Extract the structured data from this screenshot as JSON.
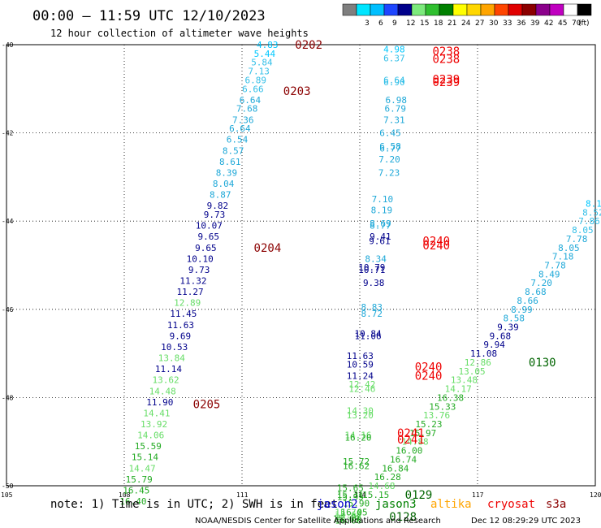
{
  "header": {
    "title": "00:00 – 11:59 UTC 12/10/2023",
    "subtitle": "12 hour collection of altimeter wave heights"
  },
  "colorbar": {
    "bins": [
      {
        "color": "#7f7f7f",
        "label": ""
      },
      {
        "color": "#00e5ff",
        "label": "3"
      },
      {
        "color": "#00bfff",
        "label": "6"
      },
      {
        "color": "#1e46ff",
        "label": "9"
      },
      {
        "color": "#00008b",
        "label": "12"
      },
      {
        "color": "#7cea7c",
        "label": "15"
      },
      {
        "color": "#2fbf2f",
        "label": "18"
      },
      {
        "color": "#008000",
        "label": "21"
      },
      {
        "color": "#ffff00",
        "label": "24"
      },
      {
        "color": "#ffd700",
        "label": "27"
      },
      {
        "color": "#ffa500",
        "label": "30"
      },
      {
        "color": "#ff4500",
        "label": "33"
      },
      {
        "color": "#e00000",
        "label": "36"
      },
      {
        "color": "#8b0000",
        "label": "39"
      },
      {
        "color": "#8b008b",
        "label": "42"
      },
      {
        "color": "#c000c0",
        "label": "45"
      },
      {
        "color": "#ffffff",
        "label": "70"
      },
      {
        "color": "#000000",
        "label": ""
      }
    ],
    "unit": "(ft)"
  },
  "axes": {
    "x_ticks": [
      "105",
      "108",
      "111",
      "114",
      "117",
      "120"
    ],
    "y_ticks": [
      "-40",
      "-42",
      "-44",
      "-46",
      "-48",
      "-50"
    ]
  },
  "palette": {
    "c1": "#00c8ff",
    "c2": "#35c0e8",
    "c3": "#1ea8d8",
    "c4": "#1e46ff",
    "c5": "#00008b",
    "g1": "#66dd66",
    "g2": "#22aa22",
    "g3": "#006400",
    "r1": "#ee0000",
    "r2": "#8b0000"
  },
  "tracks": [
    {
      "name": "track-west",
      "obs": [
        {
          "lon": 111.92,
          "lat": -40.0,
          "v": "4.83",
          "c": "c1"
        },
        {
          "lon": 111.85,
          "lat": -40.2,
          "v": "5.44",
          "c": "c1"
        },
        {
          "lon": 111.78,
          "lat": -40.4,
          "v": "5.84",
          "c": "c2"
        },
        {
          "lon": 111.7,
          "lat": -40.6,
          "v": "7.13",
          "c": "c2"
        },
        {
          "lon": 111.62,
          "lat": -40.8,
          "v": "6.89",
          "c": "c2"
        },
        {
          "lon": 111.55,
          "lat": -41.0,
          "v": "6.66",
          "c": "c2"
        },
        {
          "lon": 111.48,
          "lat": -41.25,
          "v": "6.64",
          "c": "c3"
        },
        {
          "lon": 111.4,
          "lat": -41.45,
          "v": "7.68",
          "c": "c3"
        },
        {
          "lon": 111.3,
          "lat": -41.7,
          "v": "7.36",
          "c": "c3"
        },
        {
          "lon": 111.22,
          "lat": -41.9,
          "v": "6.64",
          "c": "c3"
        },
        {
          "lon": 111.15,
          "lat": -42.15,
          "v": "6.54",
          "c": "c3"
        },
        {
          "lon": 111.05,
          "lat": -42.4,
          "v": "8.57",
          "c": "c3"
        },
        {
          "lon": 110.97,
          "lat": -42.65,
          "v": "8.61",
          "c": "c3"
        },
        {
          "lon": 110.88,
          "lat": -42.9,
          "v": "8.39",
          "c": "c3"
        },
        {
          "lon": 110.8,
          "lat": -43.15,
          "v": "8.04",
          "c": "c3"
        },
        {
          "lon": 110.72,
          "lat": -43.4,
          "v": "8.87",
          "c": "c3"
        },
        {
          "lon": 110.65,
          "lat": -43.65,
          "v": "9.82",
          "c": "c5"
        },
        {
          "lon": 110.57,
          "lat": -43.85,
          "v": "9.73",
          "c": "c5"
        },
        {
          "lon": 110.5,
          "lat": -44.1,
          "v": "10.07",
          "c": "c5"
        },
        {
          "lon": 110.42,
          "lat": -44.35,
          "v": "9.65",
          "c": "c5"
        },
        {
          "lon": 110.35,
          "lat": -44.6,
          "v": "9.65",
          "c": "c5"
        },
        {
          "lon": 110.27,
          "lat": -44.85,
          "v": "10.10",
          "c": "c5"
        },
        {
          "lon": 110.18,
          "lat": -45.1,
          "v": "9.73",
          "c": "c5"
        },
        {
          "lon": 110.1,
          "lat": -45.35,
          "v": "11.32",
          "c": "c5"
        },
        {
          "lon": 110.02,
          "lat": -45.6,
          "v": "11.27",
          "c": "c5"
        },
        {
          "lon": 109.95,
          "lat": -45.85,
          "v": "12.89",
          "c": "g1"
        },
        {
          "lon": 109.85,
          "lat": -46.1,
          "v": "11.45",
          "c": "c5"
        },
        {
          "lon": 109.78,
          "lat": -46.35,
          "v": "11.63",
          "c": "c5"
        },
        {
          "lon": 109.7,
          "lat": -46.6,
          "v": "9.69",
          "c": "c5"
        },
        {
          "lon": 109.62,
          "lat": -46.85,
          "v": "10.53",
          "c": "c5"
        },
        {
          "lon": 109.55,
          "lat": -47.1,
          "v": "13.84",
          "c": "g1"
        },
        {
          "lon": 109.47,
          "lat": -47.35,
          "v": "11.14",
          "c": "c5"
        },
        {
          "lon": 109.4,
          "lat": -47.6,
          "v": "13.62",
          "c": "g1"
        },
        {
          "lon": 109.32,
          "lat": -47.85,
          "v": "14.48",
          "c": "g1"
        },
        {
          "lon": 109.25,
          "lat": -48.1,
          "v": "11.90",
          "c": "c5"
        },
        {
          "lon": 109.17,
          "lat": -48.35,
          "v": "14.41",
          "c": "g1"
        },
        {
          "lon": 109.1,
          "lat": -48.6,
          "v": "13.92",
          "c": "g1"
        },
        {
          "lon": 109.02,
          "lat": -48.85,
          "v": "14.06",
          "c": "g1"
        },
        {
          "lon": 108.95,
          "lat": -49.1,
          "v": "15.59",
          "c": "g2"
        },
        {
          "lon": 108.87,
          "lat": -49.35,
          "v": "15.14",
          "c": "g2"
        },
        {
          "lon": 108.8,
          "lat": -49.6,
          "v": "14.47",
          "c": "g1"
        },
        {
          "lon": 108.72,
          "lat": -49.85,
          "v": "15.79",
          "c": "g2"
        },
        {
          "lon": 108.65,
          "lat": -50.1,
          "v": "16.45",
          "c": "g2"
        },
        {
          "lon": 108.57,
          "lat": -50.35,
          "v": "16.40",
          "c": "g2"
        }
      ]
    },
    {
      "name": "track-east",
      "obs": [
        {
          "lon": 120.3,
          "lat": -43.6,
          "v": "8.10",
          "c": "c1"
        },
        {
          "lon": 120.22,
          "lat": -43.8,
          "v": "8.52",
          "c": "c2"
        },
        {
          "lon": 120.12,
          "lat": -44.0,
          "v": "7.86",
          "c": "c2"
        },
        {
          "lon": 119.95,
          "lat": -44.2,
          "v": "8.05",
          "c": "c2"
        },
        {
          "lon": 119.8,
          "lat": -44.4,
          "v": "7.78",
          "c": "c3"
        },
        {
          "lon": 119.6,
          "lat": -44.6,
          "v": "8.05",
          "c": "c3"
        },
        {
          "lon": 119.45,
          "lat": -44.8,
          "v": "7.18",
          "c": "c3"
        },
        {
          "lon": 119.25,
          "lat": -45.0,
          "v": "7.78",
          "c": "c3"
        },
        {
          "lon": 119.1,
          "lat": -45.2,
          "v": "8.49",
          "c": "c3"
        },
        {
          "lon": 118.9,
          "lat": -45.4,
          "v": "7.20",
          "c": "c3"
        },
        {
          "lon": 118.75,
          "lat": -45.6,
          "v": "8.68",
          "c": "c3"
        },
        {
          "lon": 118.55,
          "lat": -45.8,
          "v": "8.66",
          "c": "c3"
        },
        {
          "lon": 118.4,
          "lat": -46.0,
          "v": "8.99",
          "c": "c3"
        },
        {
          "lon": 118.2,
          "lat": -46.2,
          "v": "8.58",
          "c": "c3"
        },
        {
          "lon": 118.05,
          "lat": -46.4,
          "v": "9.39",
          "c": "c5"
        },
        {
          "lon": 117.85,
          "lat": -46.6,
          "v": "9.68",
          "c": "c5"
        },
        {
          "lon": 117.7,
          "lat": -46.8,
          "v": "9.94",
          "c": "c5"
        },
        {
          "lon": 117.5,
          "lat": -47.0,
          "v": "11.08",
          "c": "c5"
        },
        {
          "lon": 117.35,
          "lat": -47.2,
          "v": "12.86",
          "c": "g1"
        },
        {
          "lon": 117.2,
          "lat": -47.4,
          "v": "13.05",
          "c": "g1"
        },
        {
          "lon": 117.0,
          "lat": -47.6,
          "v": "13.48",
          "c": "g1"
        },
        {
          "lon": 116.85,
          "lat": -47.8,
          "v": "14.17",
          "c": "g1"
        },
        {
          "lon": 116.65,
          "lat": -48.0,
          "v": "16.38",
          "c": "g2"
        },
        {
          "lon": 116.45,
          "lat": -48.2,
          "v": "15.33",
          "c": "g2"
        },
        {
          "lon": 116.3,
          "lat": -48.4,
          "v": "13.76",
          "c": "g1"
        },
        {
          "lon": 116.1,
          "lat": -48.6,
          "v": "15.23",
          "c": "g2"
        },
        {
          "lon": 115.95,
          "lat": -48.8,
          "v": "15.97",
          "c": "g2"
        },
        {
          "lon": 115.75,
          "lat": -49.0,
          "v": "14.88",
          "c": "g1"
        },
        {
          "lon": 115.6,
          "lat": -49.2,
          "v": "16.00",
          "c": "g2"
        },
        {
          "lon": 115.45,
          "lat": -49.4,
          "v": "16.74",
          "c": "g2"
        },
        {
          "lon": 115.25,
          "lat": -49.6,
          "v": "16.84",
          "c": "g2"
        },
        {
          "lon": 115.05,
          "lat": -49.8,
          "v": "16.28",
          "c": "g2"
        },
        {
          "lon": 114.9,
          "lat": -50.0,
          "v": "14.68",
          "c": "g1"
        },
        {
          "lon": 114.75,
          "lat": -50.2,
          "v": "15.15",
          "c": "g2"
        }
      ]
    },
    {
      "name": "track-middle-upper",
      "obs": [
        {
          "lon": 115.15,
          "lat": -40.1,
          "v": "4.98",
          "c": "c1"
        },
        {
          "lon": 115.15,
          "lat": -40.3,
          "v": "6.37",
          "c": "c2"
        },
        {
          "lon": 115.15,
          "lat": -40.8,
          "v": "6.64",
          "c": "c2"
        },
        {
          "lon": 115.15,
          "lat": -40.85,
          "v": "6.90",
          "c": "c2"
        },
        {
          "lon": 115.2,
          "lat": -41.25,
          "v": "6.98",
          "c": "c3"
        },
        {
          "lon": 115.18,
          "lat": -41.45,
          "v": "6.79",
          "c": "c3"
        },
        {
          "lon": 115.15,
          "lat": -41.7,
          "v": "7.31",
          "c": "c3"
        },
        {
          "lon": 115.05,
          "lat": -42.0,
          "v": "6.45",
          "c": "c3"
        },
        {
          "lon": 115.05,
          "lat": -42.3,
          "v": "6.58",
          "c": "c3"
        },
        {
          "lon": 115.05,
          "lat": -42.35,
          "v": "6.77",
          "c": "c3"
        },
        {
          "lon": 115.03,
          "lat": -42.6,
          "v": "7.20",
          "c": "c3"
        },
        {
          "lon": 115.02,
          "lat": -42.9,
          "v": "7.23",
          "c": "c3"
        },
        {
          "lon": 114.85,
          "lat": -43.5,
          "v": "7.10",
          "c": "c3"
        },
        {
          "lon": 114.83,
          "lat": -43.75,
          "v": "8.19",
          "c": "c3"
        },
        {
          "lon": 114.8,
          "lat": -44.05,
          "v": "8.69",
          "c": "c3"
        },
        {
          "lon": 114.8,
          "lat": -44.1,
          "v": "8.77",
          "c": "c3"
        },
        {
          "lon": 114.8,
          "lat": -44.35,
          "v": "9.41",
          "c": "c5"
        },
        {
          "lon": 114.78,
          "lat": -44.45,
          "v": "9.61",
          "c": "c5"
        }
      ]
    },
    {
      "name": "track-middle-lower",
      "obs": [
        {
          "lon": 114.68,
          "lat": -44.85,
          "v": "8.34",
          "c": "c3"
        },
        {
          "lon": 114.65,
          "lat": -45.05,
          "v": "10.79",
          "c": "c5"
        },
        {
          "lon": 114.65,
          "lat": -45.1,
          "v": "10.71",
          "c": "c5"
        },
        {
          "lon": 114.63,
          "lat": -45.4,
          "v": "9.38",
          "c": "c5"
        },
        {
          "lon": 114.58,
          "lat": -45.95,
          "v": "8.83",
          "c": "c3"
        },
        {
          "lon": 114.58,
          "lat": -46.1,
          "v": "8.72",
          "c": "c3"
        },
        {
          "lon": 114.55,
          "lat": -46.55,
          "v": "10.84",
          "c": "c5"
        },
        {
          "lon": 114.55,
          "lat": -46.6,
          "v": "11.06",
          "c": "c5"
        },
        {
          "lon": 114.35,
          "lat": -47.05,
          "v": "11.63",
          "c": "c5"
        },
        {
          "lon": 114.35,
          "lat": -47.25,
          "v": "10.59",
          "c": "c5"
        },
        {
          "lon": 114.35,
          "lat": -47.5,
          "v": "11.24",
          "c": "c5"
        },
        {
          "lon": 114.4,
          "lat": -47.7,
          "v": "12.42",
          "c": "g1"
        },
        {
          "lon": 114.4,
          "lat": -47.8,
          "v": "12.46",
          "c": "g1"
        },
        {
          "lon": 114.35,
          "lat": -48.3,
          "v": "14.30",
          "c": "g1"
        },
        {
          "lon": 114.35,
          "lat": -48.4,
          "v": "13.20",
          "c": "g1"
        },
        {
          "lon": 114.3,
          "lat": -48.85,
          "v": "14.16",
          "c": "g1"
        },
        {
          "lon": 114.3,
          "lat": -48.9,
          "v": "16.20",
          "c": "g2"
        },
        {
          "lon": 114.25,
          "lat": -49.45,
          "v": "15.72",
          "c": "g2"
        },
        {
          "lon": 114.25,
          "lat": -49.55,
          "v": "16.62",
          "c": "g2"
        },
        {
          "lon": 114.1,
          "lat": -50.05,
          "v": "15.65",
          "c": "g2"
        },
        {
          "lon": 114.1,
          "lat": -50.2,
          "v": "15.31",
          "c": "g2"
        },
        {
          "lon": 114.1,
          "lat": -50.25,
          "v": "15.95",
          "c": "g2"
        },
        {
          "lon": 114.05,
          "lat": -50.6,
          "v": "15.74",
          "c": "g1"
        },
        {
          "lon": 114.05,
          "lat": -50.65,
          "v": "15.67",
          "c": "g1"
        },
        {
          "lon": 114.05,
          "lat": -50.7,
          "v": "15.78",
          "c": "g1"
        },
        {
          "lon": 114.25,
          "lat": -50.4,
          "v": "15.90",
          "c": "g2"
        },
        {
          "lon": 114.2,
          "lat": -50.6,
          "v": "16.05",
          "c": "g2"
        },
        {
          "lon": 114.0,
          "lat": -50.75,
          "v": "15.69",
          "c": "g2"
        },
        {
          "lon": 114.05,
          "lat": -50.78,
          "v": "16.06",
          "c": "g2"
        }
      ]
    }
  ],
  "time_labels": [
    {
      "lon": 112.7,
      "lat": -40.0,
      "v": "0202",
      "c": "r2"
    },
    {
      "lon": 112.4,
      "lat": -41.05,
      "v": "0203",
      "c": "r2"
    },
    {
      "lon": 111.65,
      "lat": -44.6,
      "v": "0204",
      "c": "r2"
    },
    {
      "lon": 110.1,
      "lat": -48.15,
      "v": "0205",
      "c": "r2"
    },
    {
      "lon": 116.2,
      "lat": -40.15,
      "v": "0238",
      "c": "r1"
    },
    {
      "lon": 116.2,
      "lat": -40.32,
      "v": "0238",
      "c": "r1"
    },
    {
      "lon": 116.2,
      "lat": -40.78,
      "v": "0239",
      "c": "r1"
    },
    {
      "lon": 116.2,
      "lat": -40.85,
      "v": "0239",
      "c": "r1"
    },
    {
      "lon": 115.95,
      "lat": -44.45,
      "v": "0240",
      "c": "r1"
    },
    {
      "lon": 115.95,
      "lat": -44.55,
      "v": "0240",
      "c": "r1"
    },
    {
      "lon": 115.75,
      "lat": -47.3,
      "v": "0240",
      "c": "r1"
    },
    {
      "lon": 115.75,
      "lat": -47.5,
      "v": "0240",
      "c": "r1"
    },
    {
      "lon": 115.3,
      "lat": -48.8,
      "v": "0241",
      "c": "r1"
    },
    {
      "lon": 115.3,
      "lat": -48.95,
      "v": "0241",
      "c": "r1"
    },
    {
      "lon": 118.65,
      "lat": -47.2,
      "v": "0130",
      "c": "g3"
    },
    {
      "lon": 115.5,
      "lat": -50.2,
      "v": "0129",
      "c": "g3"
    },
    {
      "lon": 115.1,
      "lat": -50.7,
      "v": "0128",
      "c": "g3"
    }
  ],
  "footer": {
    "note": "note: 1) Time is in UTC; 2) SWH is in feet",
    "missions": [
      {
        "name": "jason2",
        "color": "#0000cd"
      },
      {
        "name": "jason3",
        "color": "#008000"
      },
      {
        "name": "altika",
        "color": "#ffa500"
      },
      {
        "name": "cryosat",
        "color": "#ee0000"
      },
      {
        "name": "s3a",
        "color": "#8b0000"
      }
    ],
    "credit": "NOAA/NESDIS Center for Satellite Applications and Research",
    "timestamp": "Dec 12 08:29:29 UTC 2023"
  }
}
